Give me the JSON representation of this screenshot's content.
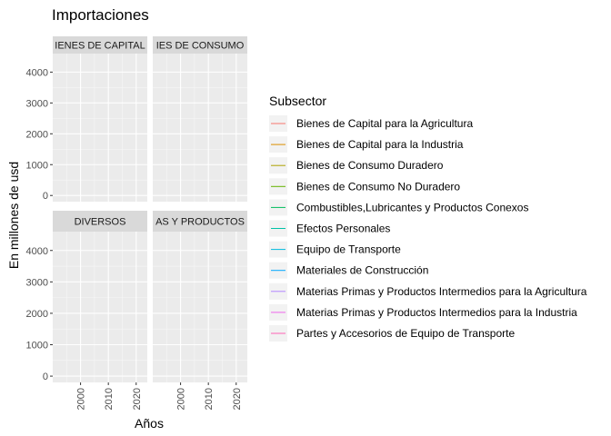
{
  "chart_data": {
    "type": "line",
    "title": "Importaciones",
    "xlabel": "Años",
    "ylabel": "En millones de usd",
    "x_ticks": [
      2000,
      2010,
      2020
    ],
    "y_ticks": [
      0,
      1000,
      2000,
      3000,
      4000
    ],
    "xlim": [
      1990,
      2024
    ],
    "ylim": [
      -200,
      4600
    ],
    "grid": true,
    "legend_position": "right",
    "legend_title": "Subsector",
    "panels": [
      {
        "label": "BIENES DE CAPITAL",
        "strip_text": "IENES DE CAPITAL"
      },
      {
        "label": "BIENES DE CONSUMO",
        "strip_text": "IES DE CONSUMO"
      },
      {
        "label": "DIVERSOS",
        "strip_text": "DIVERSOS"
      },
      {
        "label": "MATERIAS PRIMAS Y PRODUCTOS INTERMEDIOS",
        "strip_text": "AS Y PRODUCTOS"
      }
    ],
    "series": [
      {
        "name": "Bienes de Capital para la Agricultura",
        "color": "#F8766D",
        "values": []
      },
      {
        "name": "Bienes de Capital para la Industria",
        "color": "#DB8E00",
        "values": []
      },
      {
        "name": "Bienes de Consumo Duradero",
        "color": "#AEA200",
        "values": []
      },
      {
        "name": "Bienes de Consumo No Duradero",
        "color": "#64B200",
        "values": []
      },
      {
        "name": "Combustibles,Lubricantes y Productos Conexos",
        "color": "#00BD5C",
        "values": []
      },
      {
        "name": "Efectos Personales",
        "color": "#00C1A7",
        "values": []
      },
      {
        "name": "Equipo de Transporte",
        "color": "#00BADE",
        "values": []
      },
      {
        "name": "Materiales de Construcción",
        "color": "#00A6FF",
        "values": []
      },
      {
        "name": "Materias Primas y Productos Intermedios para la Agricultura",
        "color": "#B385FF",
        "values": []
      },
      {
        "name": "Materias Primas y Productos Intermedios para la Industria",
        "color": "#EF67EB",
        "values": []
      },
      {
        "name": "Partes y Accesorios de Equipo de Transporte",
        "color": "#FF63B6",
        "values": []
      }
    ]
  }
}
